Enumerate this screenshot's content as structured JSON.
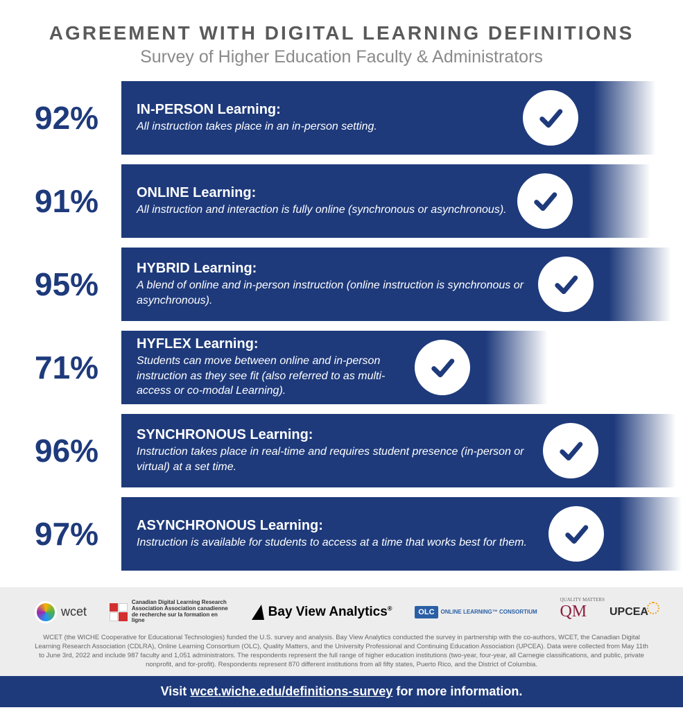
{
  "header": {
    "title": "AGREEMENT WITH DIGITAL LEARNING DEFINITIONS",
    "subtitle": "Survey of Higher Education Faculty & Administrators"
  },
  "chart": {
    "type": "bar",
    "bar_color": "#1e3a7b",
    "percent_color": "#1e3a7b",
    "text_color": "#ffffff",
    "check_bg": "#ffffff",
    "check_stroke": "#1e3a7b",
    "rows": [
      {
        "percent": "92%",
        "term_bold": "IN-PERSON",
        "term_rest": " Learning:",
        "desc": "All instruction takes place in an in-person setting.",
        "bar_width_pct": 92
      },
      {
        "percent": "91%",
        "term_bold": "ONLINE",
        "term_rest": " Learning:",
        "desc": "All instruction and interaction is fully online (synchronous or asynchronous).",
        "bar_width_pct": 91
      },
      {
        "percent": "95%",
        "term_bold": "HYBRID",
        "term_rest": " Learning:",
        "desc": "A blend of online and in-person instruction (online instruction is synchronous or asynchronous).",
        "bar_width_pct": 95
      },
      {
        "percent": "71%",
        "term_bold": "HYFLEX",
        "term_rest": " Learning:",
        "desc": "Students can move between online and in-person instruction as they see fit (also referred to as multi-access or co-modal Learning).",
        "bar_width_pct": 71
      },
      {
        "percent": "96%",
        "term_bold": "SYNCHRONOUS",
        "term_rest": " Learning:",
        "desc": "Instruction takes place in real-time and requires student presence (in-person or virtual) at a set time.",
        "bar_width_pct": 96
      },
      {
        "percent": "97%",
        "term_bold": "ASYNCHRONOUS",
        "term_rest": " Learning:",
        "desc": "Instruction is available for students to access at a time that works best for them.",
        "bar_width_pct": 97
      }
    ]
  },
  "logos": {
    "wcet": "wcet",
    "cdlra": "Canadian Digital Learning Research Association\nAssociation canadienne de recherche sur la formation en ligne",
    "bayview": "Bay View Analytics",
    "olc_badge": "OLC",
    "olc_text": "ONLINE LEARNING™\nCONSORTIUM",
    "qm_small": "QUALITY MATTERS",
    "qm": "QM",
    "upcea": "UPCEA"
  },
  "fine_print": "WCET (the WICHE Cooperative for Educational Technologies) funded the U.S. survey and analysis. Bay View Analytics conducted the survey in partnership with the co-authors, WCET, the Canadian Digital Learning Research Association (CDLRA), Online Learning Consortium (OLC), Quality Matters, and the University Professional and Continuing Education Association (UPCEA). Data were collected from May 11th to June 3rd, 2022 and include 987 faculty and 1,051 administrators. The respondents represent the full range of higher education institutions (two-year, four-year, all Carnegie classifications, and public, private nonprofit, and for-profit). Respondents represent 870 different institutions from all fifty states, Puerto Rico, and the District of Columbia.",
  "cta": {
    "prefix": "Visit ",
    "link": "wcet.wiche.edu/definitions-survey",
    "suffix": " for more information."
  }
}
